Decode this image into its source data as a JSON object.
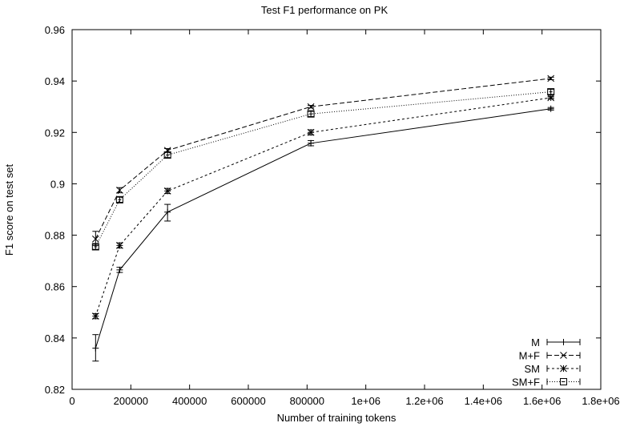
{
  "chart_data": {
    "type": "line",
    "title": "Test F1 performance on PK",
    "xlabel": "Number of training tokens",
    "ylabel": "F1 score on test set",
    "xlim": [
      0,
      1800000
    ],
    "ylim": [
      0.82,
      0.96
    ],
    "x_ticks": [
      0,
      200000,
      400000,
      600000,
      800000,
      1000000,
      1200000,
      1400000,
      1600000,
      1800000
    ],
    "x_tick_labels": [
      "0",
      "200000",
      "400000",
      "600000",
      "800000",
      "1e+06",
      "1.2e+06",
      "1.4e+06",
      "1.6e+06",
      "1.8e+06"
    ],
    "y_ticks": [
      0.82,
      0.84,
      0.86,
      0.88,
      0.9,
      0.92,
      0.94,
      0.96
    ],
    "y_tick_labels": [
      "0.82",
      "0.84",
      "0.86",
      "0.88",
      "0.9",
      "0.92",
      "0.94",
      "0.96"
    ],
    "grid": false,
    "legend_position": "bottom-right",
    "x": [
      80000,
      162000,
      325000,
      813000,
      1630000
    ],
    "series": [
      {
        "name": "M",
        "marker": "plus",
        "dash": "solid",
        "values": [
          0.836,
          0.8665,
          0.889,
          0.9158,
          0.9292
        ],
        "err_low": [
          0.831,
          0.8655,
          0.8855,
          0.9148,
          0.9287
        ],
        "err_high": [
          0.8413,
          0.8675,
          0.892,
          0.9168,
          0.9297
        ]
      },
      {
        "name": "M+F",
        "marker": "cross",
        "dash": "dashed",
        "values": [
          0.8785,
          0.8975,
          0.913,
          0.93,
          0.941
        ],
        "err_low": [
          0.876,
          0.8965,
          0.9123,
          0.9295,
          0.9405
        ],
        "err_high": [
          0.8815,
          0.8985,
          0.9137,
          0.9305,
          0.9415
        ]
      },
      {
        "name": "SM",
        "marker": "star",
        "dash": "short-dashed",
        "values": [
          0.8485,
          0.876,
          0.8972,
          0.92,
          0.9335
        ],
        "err_low": [
          0.8475,
          0.875,
          0.8962,
          0.919,
          0.933
        ],
        "err_high": [
          0.8495,
          0.877,
          0.8982,
          0.921,
          0.934
        ]
      },
      {
        "name": "SM+F",
        "marker": "square",
        "dash": "dotted",
        "values": [
          0.8755,
          0.8938,
          0.9112,
          0.9272,
          0.9358
        ],
        "err_low": [
          0.8745,
          0.8928,
          0.9102,
          0.9262,
          0.9348
        ],
        "err_high": [
          0.8765,
          0.8948,
          0.9122,
          0.9282,
          0.9368
        ]
      }
    ]
  }
}
